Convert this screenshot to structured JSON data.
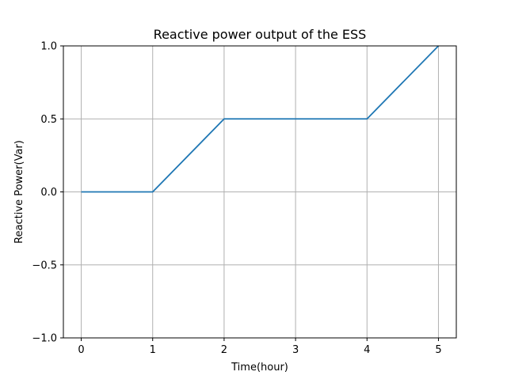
{
  "chart_data": {
    "type": "line",
    "title": "Reactive power output of the ESS",
    "xlabel": "Time(hour)",
    "ylabel": "Reactive Power(Var)",
    "xlim": [
      -0.25,
      5.25
    ],
    "ylim": [
      -1.0,
      1.0
    ],
    "grid": true,
    "legend": "none",
    "x_ticks": [
      0,
      1,
      2,
      3,
      4,
      5
    ],
    "x_tick_labels": [
      "0",
      "1",
      "2",
      "3",
      "4",
      "5"
    ],
    "y_ticks": [
      -1.0,
      -0.5,
      0.0,
      0.5,
      1.0
    ],
    "y_tick_labels": [
      "−1.0",
      "−0.5",
      "0.0",
      "0.5",
      "1.0"
    ],
    "series": [
      {
        "x": [
          0,
          1,
          2,
          3,
          4,
          5
        ],
        "y": [
          0.0,
          0.0,
          0.5,
          0.5,
          0.5,
          1.0
        ],
        "color": "#1f77b4"
      }
    ],
    "colors": {
      "grid": "#b0b0b0",
      "axes": "#000000"
    }
  }
}
